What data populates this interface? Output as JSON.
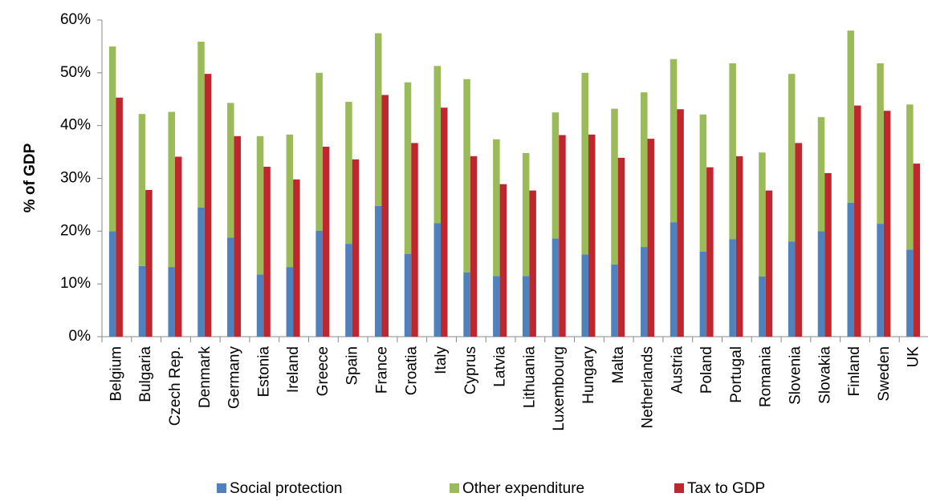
{
  "chart_data": {
    "type": "bar",
    "y_label": "% of GDP",
    "categories": [
      "Belgium",
      "Bulgaria",
      "Czech Rep.",
      "Denmark",
      "Germany",
      "Estonia",
      "Ireland",
      "Greece",
      "Spain",
      "France",
      "Croatia",
      "Italy",
      "Cyprus",
      "Latvia",
      "Lithuania",
      "Luxembourg",
      "Hungary",
      "Malta",
      "Netherlands",
      "Austria",
      "Poland",
      "Portugal",
      "Romania",
      "Slovenia",
      "Slovakia",
      "Finland",
      "Sweden",
      "UK"
    ],
    "series": [
      {
        "name": "Social protection",
        "color": "#4f81bd",
        "stack": "expenditure",
        "values": [
          20,
          13.4,
          13.2,
          24.5,
          18.8,
          11.8,
          13.2,
          20.1,
          17.6,
          24.8,
          15.7,
          21.5,
          12.2,
          11.5,
          11.5,
          18.6,
          15.6,
          13.7,
          17,
          21.7,
          16.1,
          18.5,
          11.4,
          18,
          20,
          25.4,
          21.4,
          16.5
        ]
      },
      {
        "name": "Other expenditure",
        "color": "#9bbb59",
        "stack": "expenditure",
        "values": [
          35,
          28.8,
          29.4,
          31.4,
          25.5,
          26.2,
          25.1,
          29.9,
          26.9,
          32.7,
          32.5,
          29.8,
          36.6,
          25.9,
          23.3,
          23.9,
          34.4,
          29.5,
          29.3,
          30.9,
          26,
          33.3,
          23.5,
          31.8,
          21.6,
          32.6,
          30.4,
          27.5
        ]
      },
      {
        "name": "Tax to GDP",
        "color": "#c0262d",
        "stack": "tax",
        "values": [
          45.3,
          27.8,
          34.1,
          49.8,
          38,
          32.2,
          29.8,
          36,
          33.6,
          45.8,
          36.7,
          43.4,
          34.2,
          28.9,
          27.7,
          38.2,
          38.3,
          33.9,
          37.5,
          43.1,
          32.1,
          34.2,
          27.7,
          36.7,
          31,
          43.8,
          42.8,
          32.8
        ]
      }
    ],
    "ylim": [
      0,
      60
    ],
    "yticks": [
      {
        "value": 0,
        "label": "0%"
      },
      {
        "value": 10,
        "label": "10%"
      },
      {
        "value": 20,
        "label": "20%"
      },
      {
        "value": 30,
        "label": "30%"
      },
      {
        "value": 40,
        "label": "40%"
      },
      {
        "value": 50,
        "label": "50%"
      },
      {
        "value": 60,
        "label": "60%"
      }
    ],
    "legend": "bottom"
  }
}
